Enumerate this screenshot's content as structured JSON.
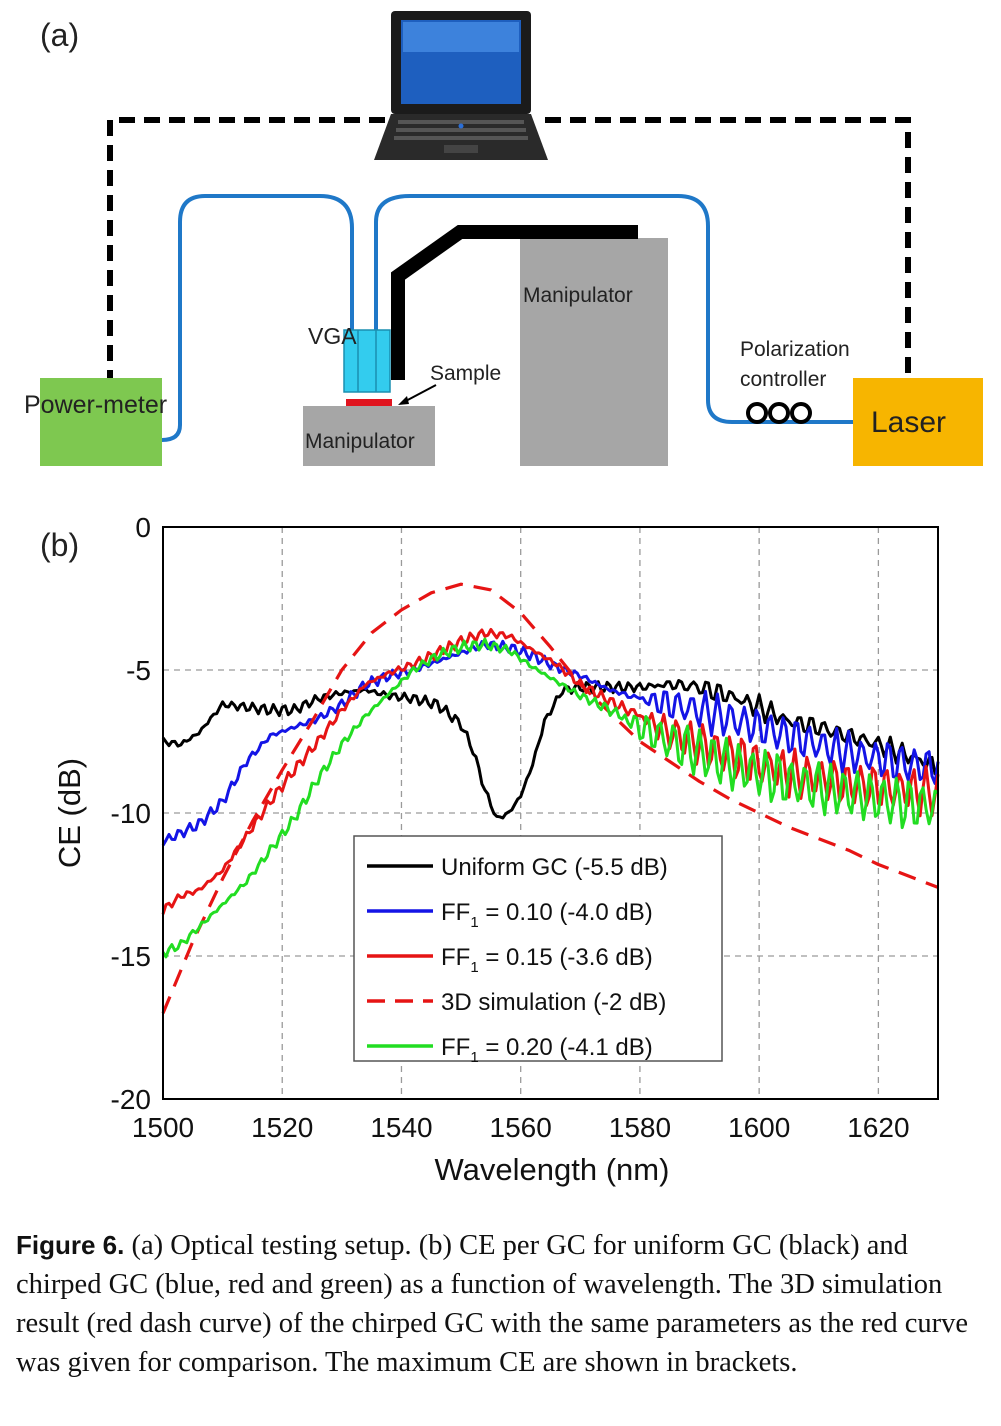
{
  "panel_a": {
    "label": "(a)",
    "power_meter": "Power-meter",
    "vga": "VGA",
    "sample": "Sample",
    "manipulator_left": "Manipulator",
    "manipulator_right": "Manipulator",
    "polarization_line1": "Polarization",
    "polarization_line2": "controller",
    "laser": "Laser",
    "colors": {
      "power_meter": "#7ec850",
      "laser": "#f7b500",
      "manipulator": "#a6a6a6",
      "fiber": "#1f78c8",
      "vga": "#33ccee",
      "sample": "#e0141e"
    }
  },
  "panel_b": {
    "label": "(b)"
  },
  "chart_data": {
    "type": "line",
    "xlabel": "Wavelength (nm)",
    "ylabel": "CE (dB)",
    "xlim": [
      1500,
      1630
    ],
    "ylim": [
      -20,
      0
    ],
    "xticks": [
      1500,
      1520,
      1540,
      1560,
      1580,
      1600,
      1620
    ],
    "yticks": [
      0,
      -5,
      -10,
      -15,
      -20
    ],
    "grid": true,
    "legend_position": "bottom-center",
    "series": [
      {
        "name": "Uniform GC (-5.5 dB)",
        "label_main": "Uniform GC (-5.5 dB)",
        "color": "#000000",
        "dash": false,
        "ripple": 0.25,
        "ripple_start": 1580,
        "x": [
          1500,
          1503,
          1506,
          1510,
          1514,
          1518,
          1522,
          1526,
          1530,
          1534,
          1538,
          1542,
          1546,
          1550,
          1552,
          1554,
          1556,
          1558,
          1560,
          1562,
          1564,
          1567,
          1570,
          1575,
          1580,
          1585,
          1590,
          1595,
          1600,
          1605,
          1610,
          1615,
          1620,
          1625,
          1630
        ],
        "y": [
          -7.5,
          -7.6,
          -7.2,
          -6.2,
          -6.3,
          -6.4,
          -6.4,
          -6.0,
          -5.8,
          -5.7,
          -5.9,
          -6.0,
          -6.2,
          -6.9,
          -7.8,
          -9.2,
          -10.2,
          -10.0,
          -9.4,
          -8.3,
          -6.8,
          -5.7,
          -5.6,
          -5.6,
          -5.6,
          -5.5,
          -5.6,
          -5.9,
          -6.3,
          -6.8,
          -7.0,
          -7.3,
          -7.6,
          -8.0,
          -8.4
        ]
      },
      {
        "name": "FF₁ = 0.10 (-4.0 dB)",
        "label_main": "FF",
        "label_sub": "1",
        "label_rest": " = 0.10 (-4.0 dB)",
        "color": "#1414e6",
        "dash": false,
        "ripple": 0.6,
        "ripple_start": 1578,
        "x": [
          1500,
          1503,
          1506,
          1510,
          1514,
          1518,
          1522,
          1526,
          1530,
          1534,
          1538,
          1542,
          1546,
          1550,
          1554,
          1558,
          1562,
          1566,
          1570,
          1575,
          1580,
          1585,
          1590,
          1595,
          1600,
          1605,
          1610,
          1615,
          1620,
          1625,
          1630
        ],
        "y": [
          -11.0,
          -10.7,
          -10.4,
          -9.6,
          -8.2,
          -7.3,
          -7.0,
          -6.7,
          -6.2,
          -5.5,
          -5.2,
          -5.0,
          -4.7,
          -4.4,
          -4.1,
          -4.2,
          -4.5,
          -4.9,
          -5.2,
          -5.7,
          -6.0,
          -6.2,
          -6.4,
          -6.7,
          -7.0,
          -7.3,
          -7.6,
          -7.9,
          -8.1,
          -8.3,
          -8.4
        ]
      },
      {
        "name": "FF₁ = 0.15 (-3.6 dB)",
        "label_main": "FF",
        "label_sub": "1",
        "label_rest": " = 0.15 (-3.6 dB)",
        "color": "#e61414",
        "dash": false,
        "ripple": 0.7,
        "ripple_start": 1578,
        "x": [
          1500,
          1503,
          1506,
          1510,
          1514,
          1518,
          1522,
          1526,
          1530,
          1534,
          1538,
          1542,
          1546,
          1550,
          1554,
          1558,
          1562,
          1566,
          1570,
          1575,
          1580,
          1585,
          1590,
          1595,
          1600,
          1605,
          1610,
          1615,
          1620,
          1625,
          1630
        ],
        "y": [
          -13.4,
          -12.9,
          -12.7,
          -12.0,
          -10.8,
          -9.6,
          -8.5,
          -7.5,
          -6.4,
          -5.5,
          -5.1,
          -4.8,
          -4.4,
          -4.0,
          -3.7,
          -3.8,
          -4.3,
          -4.8,
          -5.5,
          -6.1,
          -6.6,
          -7.2,
          -7.6,
          -8.0,
          -8.3,
          -8.6,
          -8.8,
          -9.0,
          -9.1,
          -9.2,
          -9.3
        ]
      },
      {
        "name": "3D simulation (-2 dB)",
        "label_main": "3D simulation (-2 dB)",
        "color": "#e61414",
        "dash": true,
        "ripple": 0,
        "ripple_start": 1700,
        "x": [
          1500,
          1505,
          1510,
          1515,
          1520,
          1525,
          1530,
          1535,
          1540,
          1545,
          1550,
          1555,
          1560,
          1565,
          1570,
          1575,
          1580,
          1585,
          1590,
          1595,
          1600,
          1605,
          1610,
          1615,
          1620,
          1625,
          1630
        ],
        "y": [
          -17.0,
          -14.5,
          -12.3,
          -10.3,
          -8.5,
          -6.8,
          -5.0,
          -3.7,
          -2.9,
          -2.3,
          -2.0,
          -2.2,
          -3.0,
          -4.2,
          -5.5,
          -6.5,
          -7.5,
          -8.2,
          -8.9,
          -9.5,
          -10.0,
          -10.5,
          -10.9,
          -11.3,
          -11.8,
          -12.2,
          -12.6
        ]
      },
      {
        "name": "FF₁ = 0.20 (-4.1 dB)",
        "label_main": "FF",
        "label_sub": "1",
        "label_rest": " = 0.20 (-4.1 dB)",
        "color": "#22dd22",
        "dash": false,
        "ripple": 0.8,
        "ripple_start": 1576,
        "x": [
          1500,
          1503,
          1506,
          1510,
          1514,
          1518,
          1522,
          1526,
          1530,
          1534,
          1538,
          1542,
          1546,
          1550,
          1554,
          1558,
          1562,
          1566,
          1570,
          1575,
          1580,
          1585,
          1590,
          1595,
          1600,
          1605,
          1610,
          1615,
          1620,
          1625,
          1630
        ],
        "y": [
          -14.9,
          -14.6,
          -14.0,
          -13.2,
          -12.4,
          -11.3,
          -10.2,
          -8.8,
          -7.6,
          -6.6,
          -5.8,
          -5.0,
          -4.5,
          -4.2,
          -4.1,
          -4.3,
          -4.9,
          -5.4,
          -5.9,
          -6.4,
          -7.0,
          -7.5,
          -7.9,
          -8.3,
          -8.6,
          -8.9,
          -9.1,
          -9.3,
          -9.5,
          -9.7,
          -9.8
        ]
      }
    ]
  },
  "caption": {
    "label": "Figure 6.",
    "text": " (a) Optical testing setup. (b) CE per GC for uniform GC (black) and chirped GC (blue, red and green) as a function of wavelength. The 3D simulation result (red dash curve) of the chirped GC with the same parameters as the red curve was given for comparison. The maximum CE are shown in brackets."
  }
}
